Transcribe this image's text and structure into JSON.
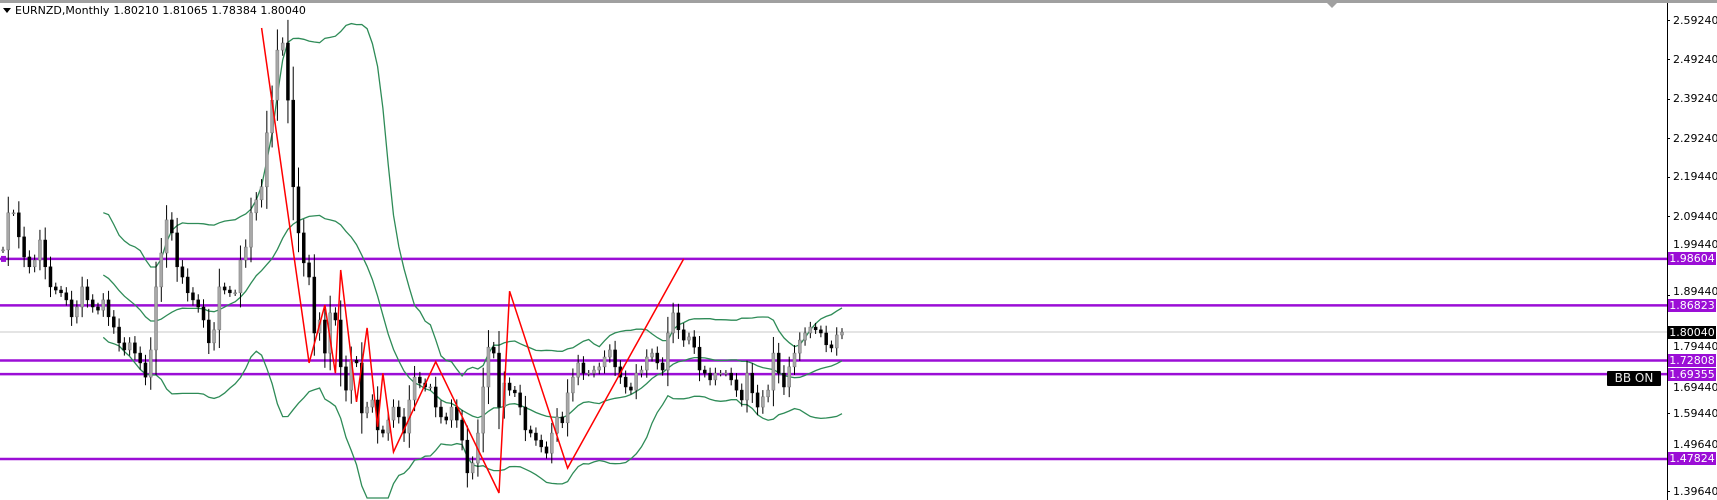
{
  "header": {
    "symbol_timeframe": "EURNZD,Monthly",
    "ohlc": "1.80210 1.81065 1.78384 1.80040"
  },
  "badge": {
    "label": "BB ON"
  },
  "colors": {
    "level": "#9b0ed6",
    "band": "#2e8b57",
    "zigzag": "#ff0000",
    "bull": "#a8a8a8",
    "bear": "#000000",
    "current": "#c8c8c8"
  },
  "chart_data": {
    "type": "candlestick",
    "ylim": [
      1.374,
      2.6177
    ],
    "grid": false,
    "y_ticks": [
      "2.59240",
      "2.49240",
      "2.39240",
      "2.29240",
      "2.19440",
      "2.09440",
      "1.99440",
      "1.89440",
      "1.79440",
      "1.69440",
      "1.59440",
      "1.49640",
      "1.39640"
    ],
    "closes": [
      2.009,
      2.103,
      2.103,
      2.042,
      1.991,
      1.966,
      1.983,
      2.034,
      1.966,
      1.915,
      1.907,
      1.9,
      1.882,
      1.839,
      1.864,
      1.915,
      1.882,
      1.864,
      1.856,
      1.882,
      1.839,
      1.813,
      1.773,
      1.755,
      1.773,
      1.747,
      1.722,
      1.686,
      1.755,
      1.915,
      2.001,
      2.085,
      2.052,
      1.966,
      1.94,
      1.9,
      1.882,
      1.864,
      1.831,
      1.773,
      1.806,
      1.915,
      1.907,
      1.9,
      1.9,
      1.983,
      2.016,
      2.103,
      2.136,
      2.169,
      2.306,
      2.389,
      2.516,
      2.534,
      2.389,
      2.169,
      2.052,
      1.976,
      1.94,
      1.798,
      1.831,
      1.747,
      1.849,
      1.831,
      1.712,
      1.653,
      1.729,
      1.722,
      1.595,
      1.61,
      1.628,
      1.552,
      1.544,
      1.577,
      1.61,
      1.585,
      1.544,
      1.628,
      1.686,
      1.671,
      1.661,
      1.661,
      1.61,
      1.585,
      1.577,
      1.61,
      1.577,
      1.526,
      1.443,
      1.468,
      1.544,
      1.661,
      1.762,
      1.747,
      1.61,
      1.671,
      1.653,
      1.646,
      1.61,
      1.552,
      1.544,
      1.526,
      1.509,
      1.493,
      1.544,
      1.585,
      1.57,
      1.646,
      1.686,
      1.722,
      1.696,
      1.696,
      1.704,
      1.712,
      1.737,
      1.755,
      1.712,
      1.686,
      1.661,
      1.653,
      1.696,
      1.704,
      1.737,
      1.747,
      1.722,
      1.704,
      1.798,
      1.849,
      1.806,
      1.78,
      1.788,
      1.762,
      1.704,
      1.696,
      1.679,
      1.696,
      1.696,
      1.696,
      1.679,
      1.653,
      1.628,
      1.696,
      1.646,
      1.61,
      1.636,
      1.653,
      1.747,
      1.696,
      1.661,
      1.712,
      1.747,
      1.78,
      1.798,
      1.813,
      1.806,
      1.798,
      1.768,
      1.76,
      1.793,
      1.8
    ],
    "bollinger": {
      "period": 20,
      "deviation": 2
    },
    "zigzag": [
      [
        49,
        2.572
      ],
      [
        58,
        1.722
      ],
      [
        61,
        1.869
      ],
      [
        63,
        1.696
      ],
      [
        64,
        1.958
      ],
      [
        67,
        1.623
      ],
      [
        69,
        1.811
      ],
      [
        71,
        1.56
      ],
      [
        72,
        1.696
      ],
      [
        74,
        1.496
      ],
      [
        82,
        1.725
      ],
      [
        94,
        1.392
      ],
      [
        96,
        1.904
      ],
      [
        107,
        1.455
      ],
      [
        129,
        1.986
      ]
    ],
    "levels": [
      {
        "price": 1.98604,
        "label": "1.98604"
      },
      {
        "price": 1.86823,
        "label": "1.86823"
      },
      {
        "price": 1.72808,
        "label": "1.72808"
      },
      {
        "price": 1.69355,
        "label": "1.69355"
      },
      {
        "price": 1.47824,
        "label": "1.47824"
      }
    ],
    "current_price": {
      "price": 1.8004,
      "label": "1.80040"
    }
  }
}
